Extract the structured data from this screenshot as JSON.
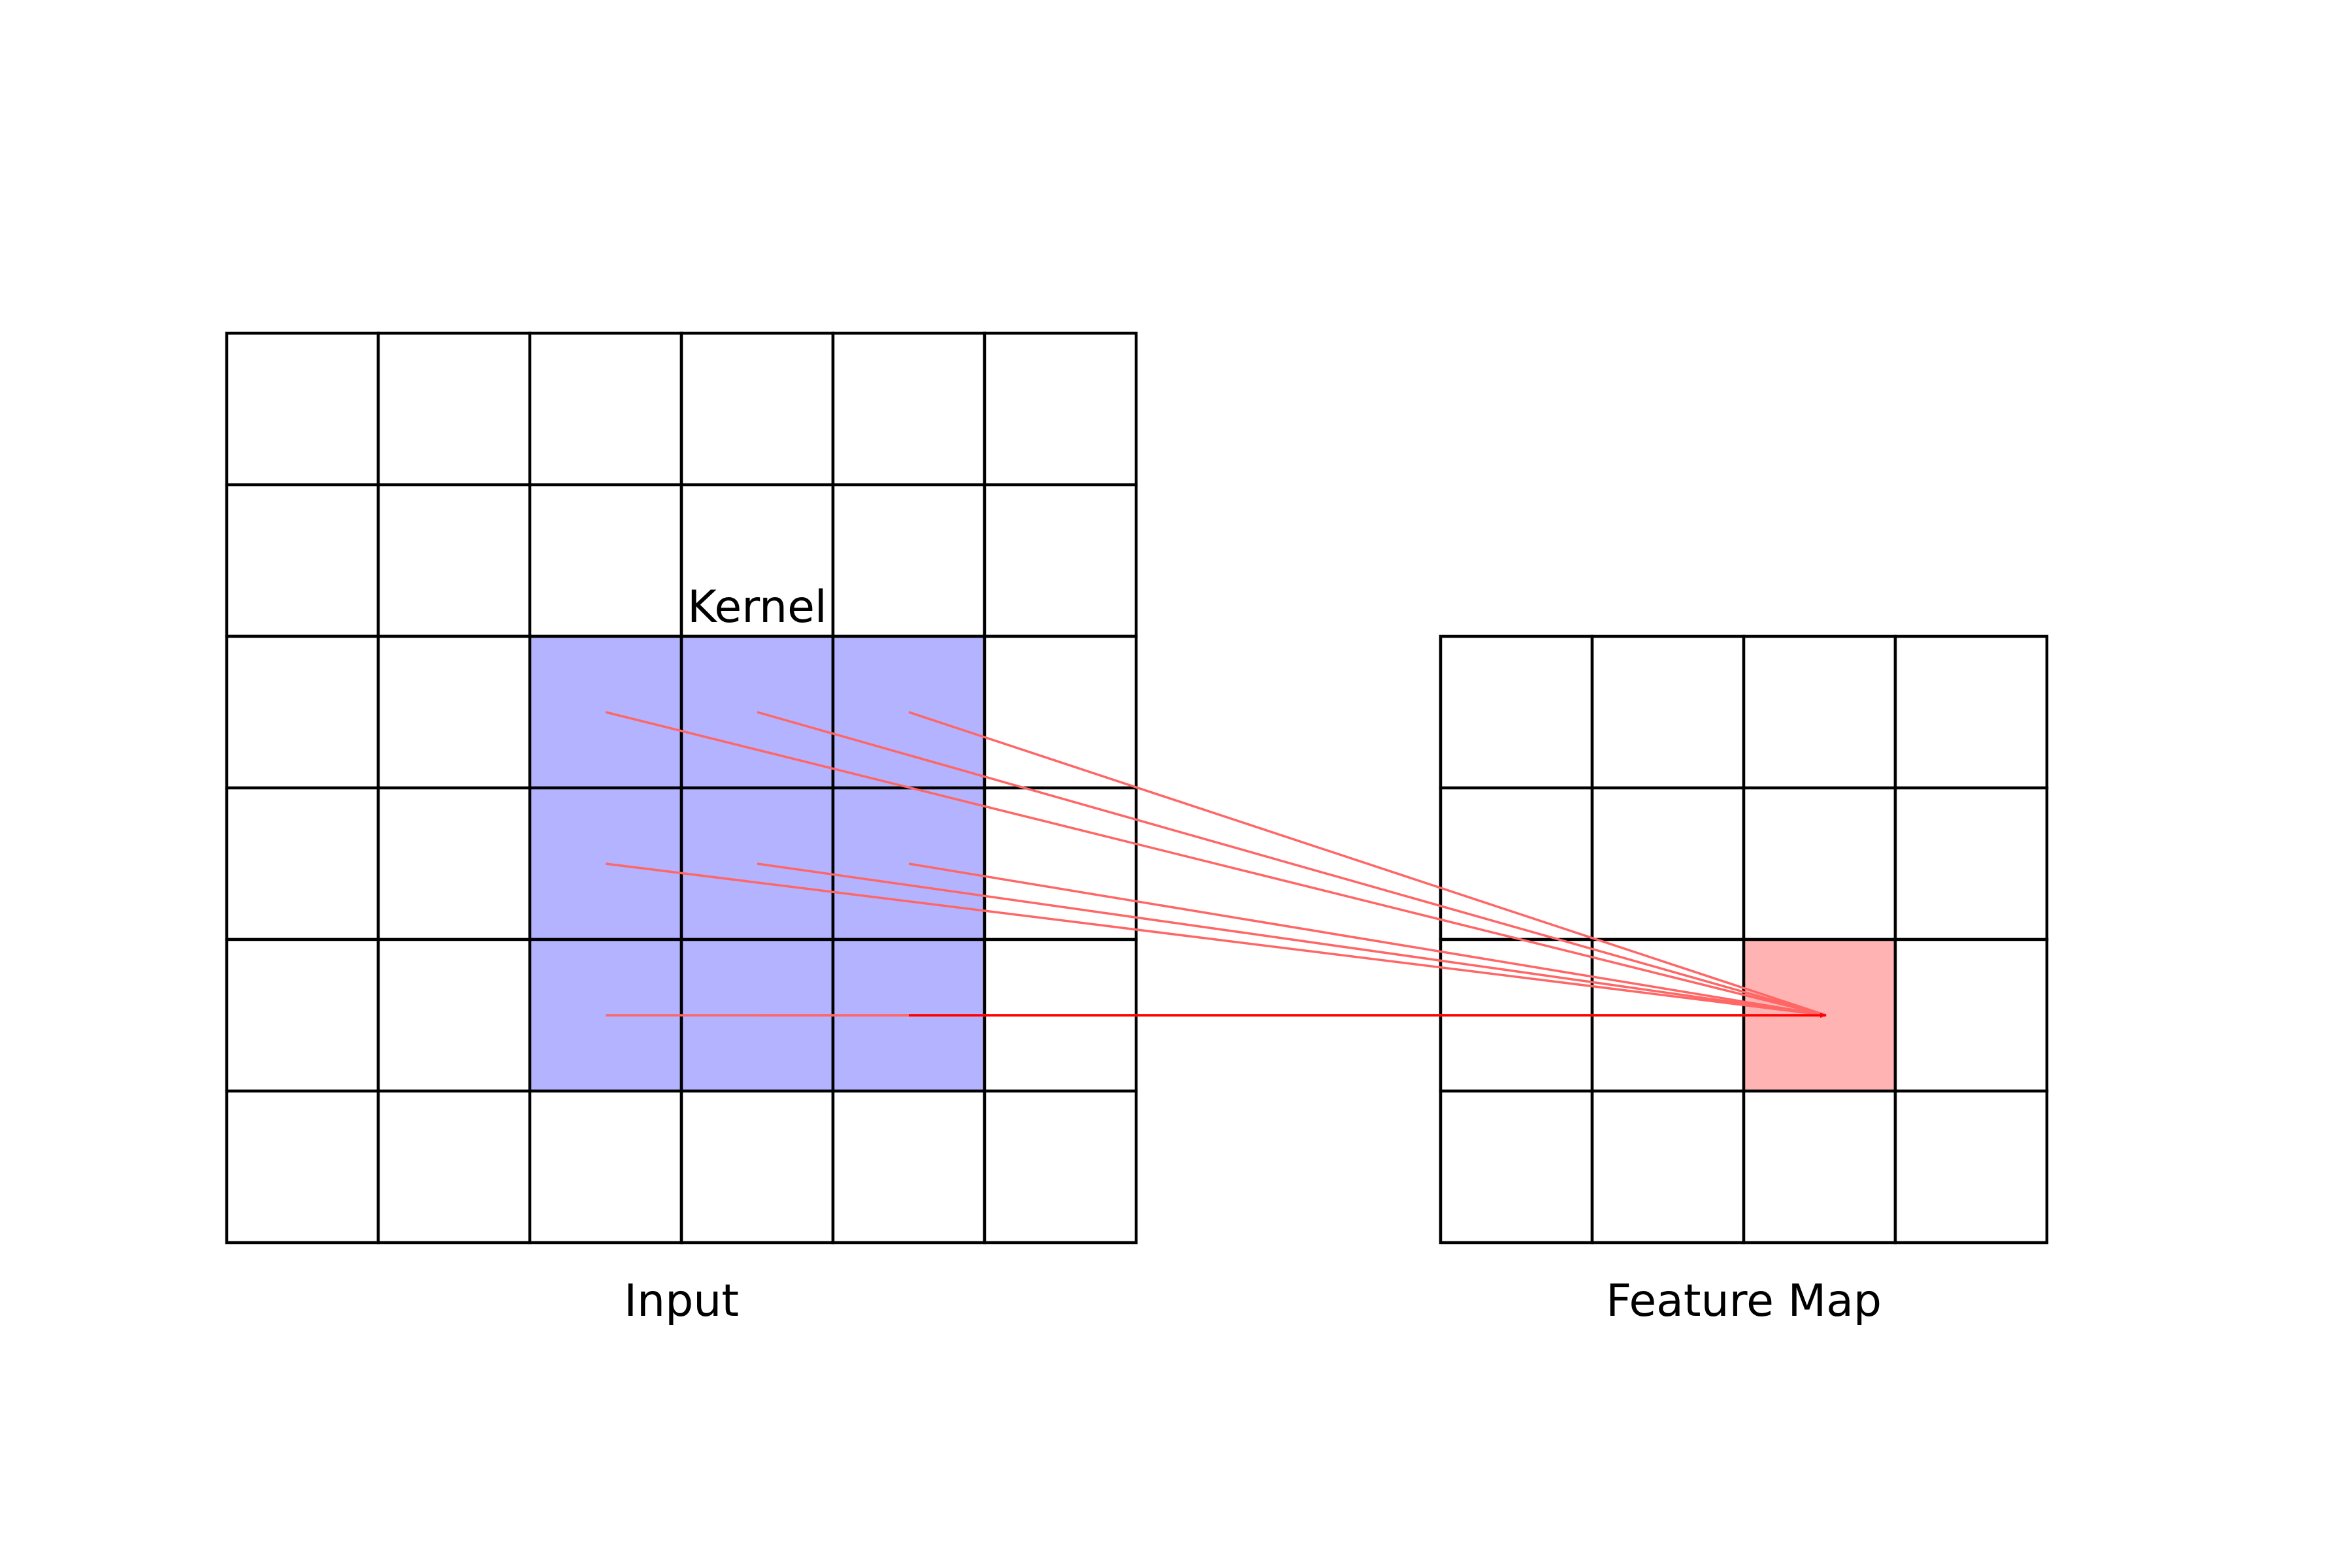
{
  "input": {
    "label": "Input",
    "rows": 6,
    "cols": 6
  },
  "kernel": {
    "label": "Kernel",
    "row_start": 2,
    "col_start": 2,
    "size": 3,
    "fill_color": "#b3b3ff"
  },
  "feature_map": {
    "label": "Feature Map",
    "rows": 4,
    "cols": 4,
    "highlight_row": 2,
    "highlight_col": 2,
    "highlight_color": "#ffb3b3"
  },
  "connections": {
    "line_color": "#ff6666",
    "arrow_color": "#ff0000"
  },
  "grid_line_color": "#000000"
}
